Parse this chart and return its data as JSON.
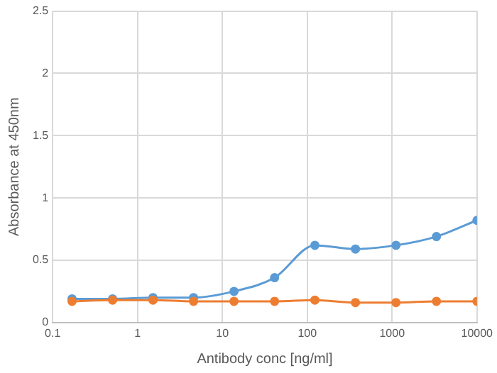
{
  "chart_data": {
    "type": "line",
    "xlabel": "Antibody conc [ng/ml]",
    "ylabel": "Absorbance at 450nm",
    "x": [
      0.169,
      0.508,
      1.52,
      4.57,
      13.7,
      41.2,
      123,
      370,
      1111,
      3333,
      10000
    ],
    "series": [
      {
        "color": "#5b9bd5",
        "values": [
          0.19,
          0.19,
          0.2,
          0.2,
          0.25,
          0.36,
          0.62,
          0.59,
          0.62,
          0.69,
          0.82
        ]
      },
      {
        "color": "#ed7d31",
        "values": [
          0.17,
          0.18,
          0.18,
          0.17,
          0.17,
          0.17,
          0.18,
          0.16,
          0.16,
          0.17,
          0.17
        ]
      }
    ],
    "log": "x",
    "xlim": [
      0.1,
      10000
    ],
    "xticks": [
      0.1,
      1,
      10,
      100,
      1000,
      10000
    ],
    "ylim": [
      0,
      2.5
    ],
    "yticks": [
      0,
      0.5,
      1,
      1.5,
      2,
      2.5
    ],
    "grid": true,
    "legend": false,
    "marker": "circle",
    "line_style": "solid"
  }
}
